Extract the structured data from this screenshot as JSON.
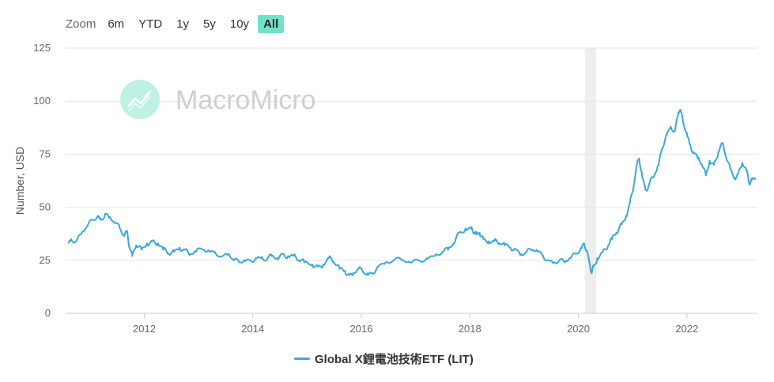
{
  "toolbar": {
    "zoom_label": "Zoom",
    "buttons": [
      "6m",
      "YTD",
      "1y",
      "5y",
      "10y",
      "All"
    ],
    "active": "All"
  },
  "watermark": {
    "text": "MacroMicro",
    "icon": "trend-chart-logo-icon"
  },
  "colors": {
    "series": "#3aa8d8",
    "active_button": "#6fe3c5",
    "recession_band": "#eeeeee",
    "watermark": "#b9ecdf"
  },
  "chart_data": {
    "type": "line",
    "ylabel": "Number, USD",
    "xlabel": "",
    "ylim": [
      0,
      125
    ],
    "yticks": [
      0,
      25,
      50,
      75,
      100,
      125
    ],
    "xlim": [
      2010.55,
      2023.3
    ],
    "xticks": [
      {
        "value": 2012,
        "label": "2012"
      },
      {
        "value": 2014,
        "label": "2014"
      },
      {
        "value": 2016,
        "label": "2016"
      },
      {
        "value": 2018,
        "label": "2018"
      },
      {
        "value": 2020,
        "label": "2020"
      },
      {
        "value": 2022,
        "label": "2022"
      }
    ],
    "grid": "horizontal",
    "legend_position": "bottom-center",
    "shaded_periods": [
      [
        2020.12,
        2020.33
      ]
    ],
    "series": [
      {
        "name": "Global X鋰電池技術ETF (LIT)",
        "points": [
          [
            2010.6,
            33
          ],
          [
            2010.65,
            35
          ],
          [
            2010.75,
            34
          ],
          [
            2010.85,
            38
          ],
          [
            2010.95,
            41
          ],
          [
            2011.05,
            44
          ],
          [
            2011.15,
            46
          ],
          [
            2011.2,
            44
          ],
          [
            2011.28,
            47
          ],
          [
            2011.35,
            45
          ],
          [
            2011.45,
            43
          ],
          [
            2011.55,
            40
          ],
          [
            2011.62,
            37
          ],
          [
            2011.68,
            39
          ],
          [
            2011.73,
            31
          ],
          [
            2011.78,
            27
          ],
          [
            2011.85,
            32
          ],
          [
            2011.95,
            30
          ],
          [
            2012.05,
            33
          ],
          [
            2012.15,
            34
          ],
          [
            2012.25,
            33
          ],
          [
            2012.35,
            30
          ],
          [
            2012.45,
            28
          ],
          [
            2012.55,
            29
          ],
          [
            2012.65,
            31
          ],
          [
            2012.75,
            30
          ],
          [
            2012.85,
            28
          ],
          [
            2012.95,
            29
          ],
          [
            2013.1,
            30
          ],
          [
            2013.2,
            29
          ],
          [
            2013.3,
            29
          ],
          [
            2013.45,
            27
          ],
          [
            2013.55,
            28
          ],
          [
            2013.65,
            25
          ],
          [
            2013.75,
            24
          ],
          [
            2013.85,
            25
          ],
          [
            2013.95,
            25
          ],
          [
            2014.05,
            26
          ],
          [
            2014.15,
            26
          ],
          [
            2014.25,
            25
          ],
          [
            2014.35,
            27
          ],
          [
            2014.45,
            26
          ],
          [
            2014.55,
            28
          ],
          [
            2014.65,
            27
          ],
          [
            2014.75,
            27
          ],
          [
            2014.85,
            25
          ],
          [
            2014.95,
            24
          ],
          [
            2015.1,
            23
          ],
          [
            2015.2,
            22
          ],
          [
            2015.3,
            23
          ],
          [
            2015.4,
            26
          ],
          [
            2015.5,
            24
          ],
          [
            2015.6,
            21
          ],
          [
            2015.7,
            20
          ],
          [
            2015.78,
            18
          ],
          [
            2015.85,
            19
          ],
          [
            2015.95,
            21
          ],
          [
            2016.05,
            19
          ],
          [
            2016.12,
            18
          ],
          [
            2016.2,
            19
          ],
          [
            2016.3,
            22
          ],
          [
            2016.45,
            24
          ],
          [
            2016.6,
            25
          ],
          [
            2016.75,
            25
          ],
          [
            2016.9,
            24
          ],
          [
            2017.05,
            25
          ],
          [
            2017.2,
            26
          ],
          [
            2017.35,
            27
          ],
          [
            2017.5,
            29
          ],
          [
            2017.6,
            30
          ],
          [
            2017.7,
            33
          ],
          [
            2017.8,
            38
          ],
          [
            2017.92,
            40
          ],
          [
            2018.02,
            40
          ],
          [
            2018.08,
            38
          ],
          [
            2018.12,
            37
          ],
          [
            2018.18,
            38
          ],
          [
            2018.25,
            35
          ],
          [
            2018.35,
            34
          ],
          [
            2018.45,
            34
          ],
          [
            2018.55,
            33
          ],
          [
            2018.65,
            32
          ],
          [
            2018.75,
            31
          ],
          [
            2018.85,
            30
          ],
          [
            2018.95,
            28
          ],
          [
            2019.05,
            29
          ],
          [
            2019.15,
            30
          ],
          [
            2019.25,
            29
          ],
          [
            2019.35,
            27
          ],
          [
            2019.45,
            25
          ],
          [
            2019.55,
            24
          ],
          [
            2019.65,
            25
          ],
          [
            2019.75,
            24
          ],
          [
            2019.85,
            26
          ],
          [
            2019.95,
            28
          ],
          [
            2020.05,
            31
          ],
          [
            2020.1,
            33
          ],
          [
            2020.15,
            30
          ],
          [
            2020.2,
            24
          ],
          [
            2020.24,
            19
          ],
          [
            2020.28,
            22
          ],
          [
            2020.35,
            26
          ],
          [
            2020.45,
            29
          ],
          [
            2020.55,
            32
          ],
          [
            2020.62,
            35
          ],
          [
            2020.7,
            38
          ],
          [
            2020.8,
            42
          ],
          [
            2020.88,
            46
          ],
          [
            2020.95,
            52
          ],
          [
            2021.02,
            60
          ],
          [
            2021.08,
            70
          ],
          [
            2021.12,
            73
          ],
          [
            2021.18,
            64
          ],
          [
            2021.25,
            58
          ],
          [
            2021.32,
            62
          ],
          [
            2021.4,
            65
          ],
          [
            2021.48,
            70
          ],
          [
            2021.55,
            78
          ],
          [
            2021.62,
            84
          ],
          [
            2021.7,
            88
          ],
          [
            2021.78,
            86
          ],
          [
            2021.84,
            94
          ],
          [
            2021.88,
            96
          ],
          [
            2021.93,
            90
          ],
          [
            2022.0,
            85
          ],
          [
            2022.05,
            80
          ],
          [
            2022.12,
            76
          ],
          [
            2022.2,
            73
          ],
          [
            2022.28,
            70
          ],
          [
            2022.35,
            65
          ],
          [
            2022.42,
            72
          ],
          [
            2022.5,
            70
          ],
          [
            2022.58,
            76
          ],
          [
            2022.65,
            80
          ],
          [
            2022.72,
            74
          ],
          [
            2022.8,
            68
          ],
          [
            2022.88,
            64
          ],
          [
            2022.95,
            66
          ],
          [
            2023.02,
            71
          ],
          [
            2023.1,
            67
          ],
          [
            2023.15,
            61
          ],
          [
            2023.2,
            63
          ],
          [
            2023.26,
            64
          ]
        ]
      }
    ]
  }
}
